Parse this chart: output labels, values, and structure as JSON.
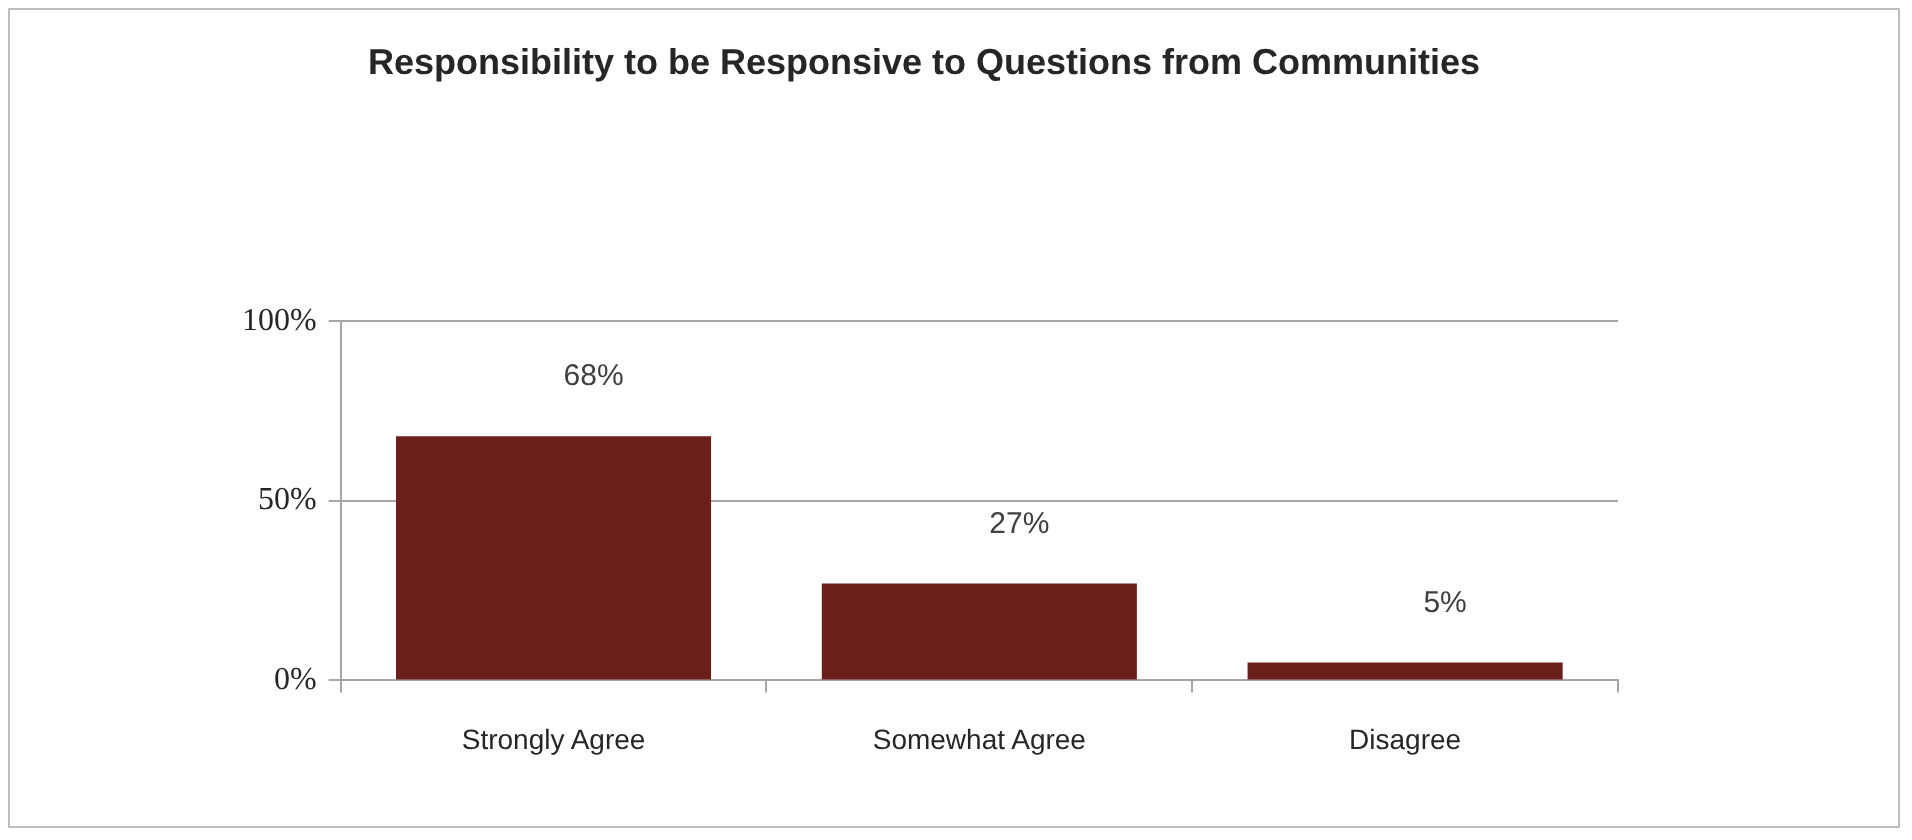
{
  "chart_data": {
    "type": "bar",
    "title": "Responsibility to be Responsive to Questions from Communities",
    "categories": [
      "Strongly Agree",
      "Somewhat Agree",
      "Disagree"
    ],
    "values": [
      68,
      27,
      5
    ],
    "value_labels": [
      "68%",
      "27%",
      "5%"
    ],
    "color": "#6b1e1a",
    "ylim": [
      0,
      100
    ],
    "yticks": [
      {
        "value": 0,
        "label": "0%"
      },
      {
        "value": 50,
        "label": "50%"
      },
      {
        "value": 100,
        "label": "100%"
      }
    ],
    "grid": "y"
  }
}
